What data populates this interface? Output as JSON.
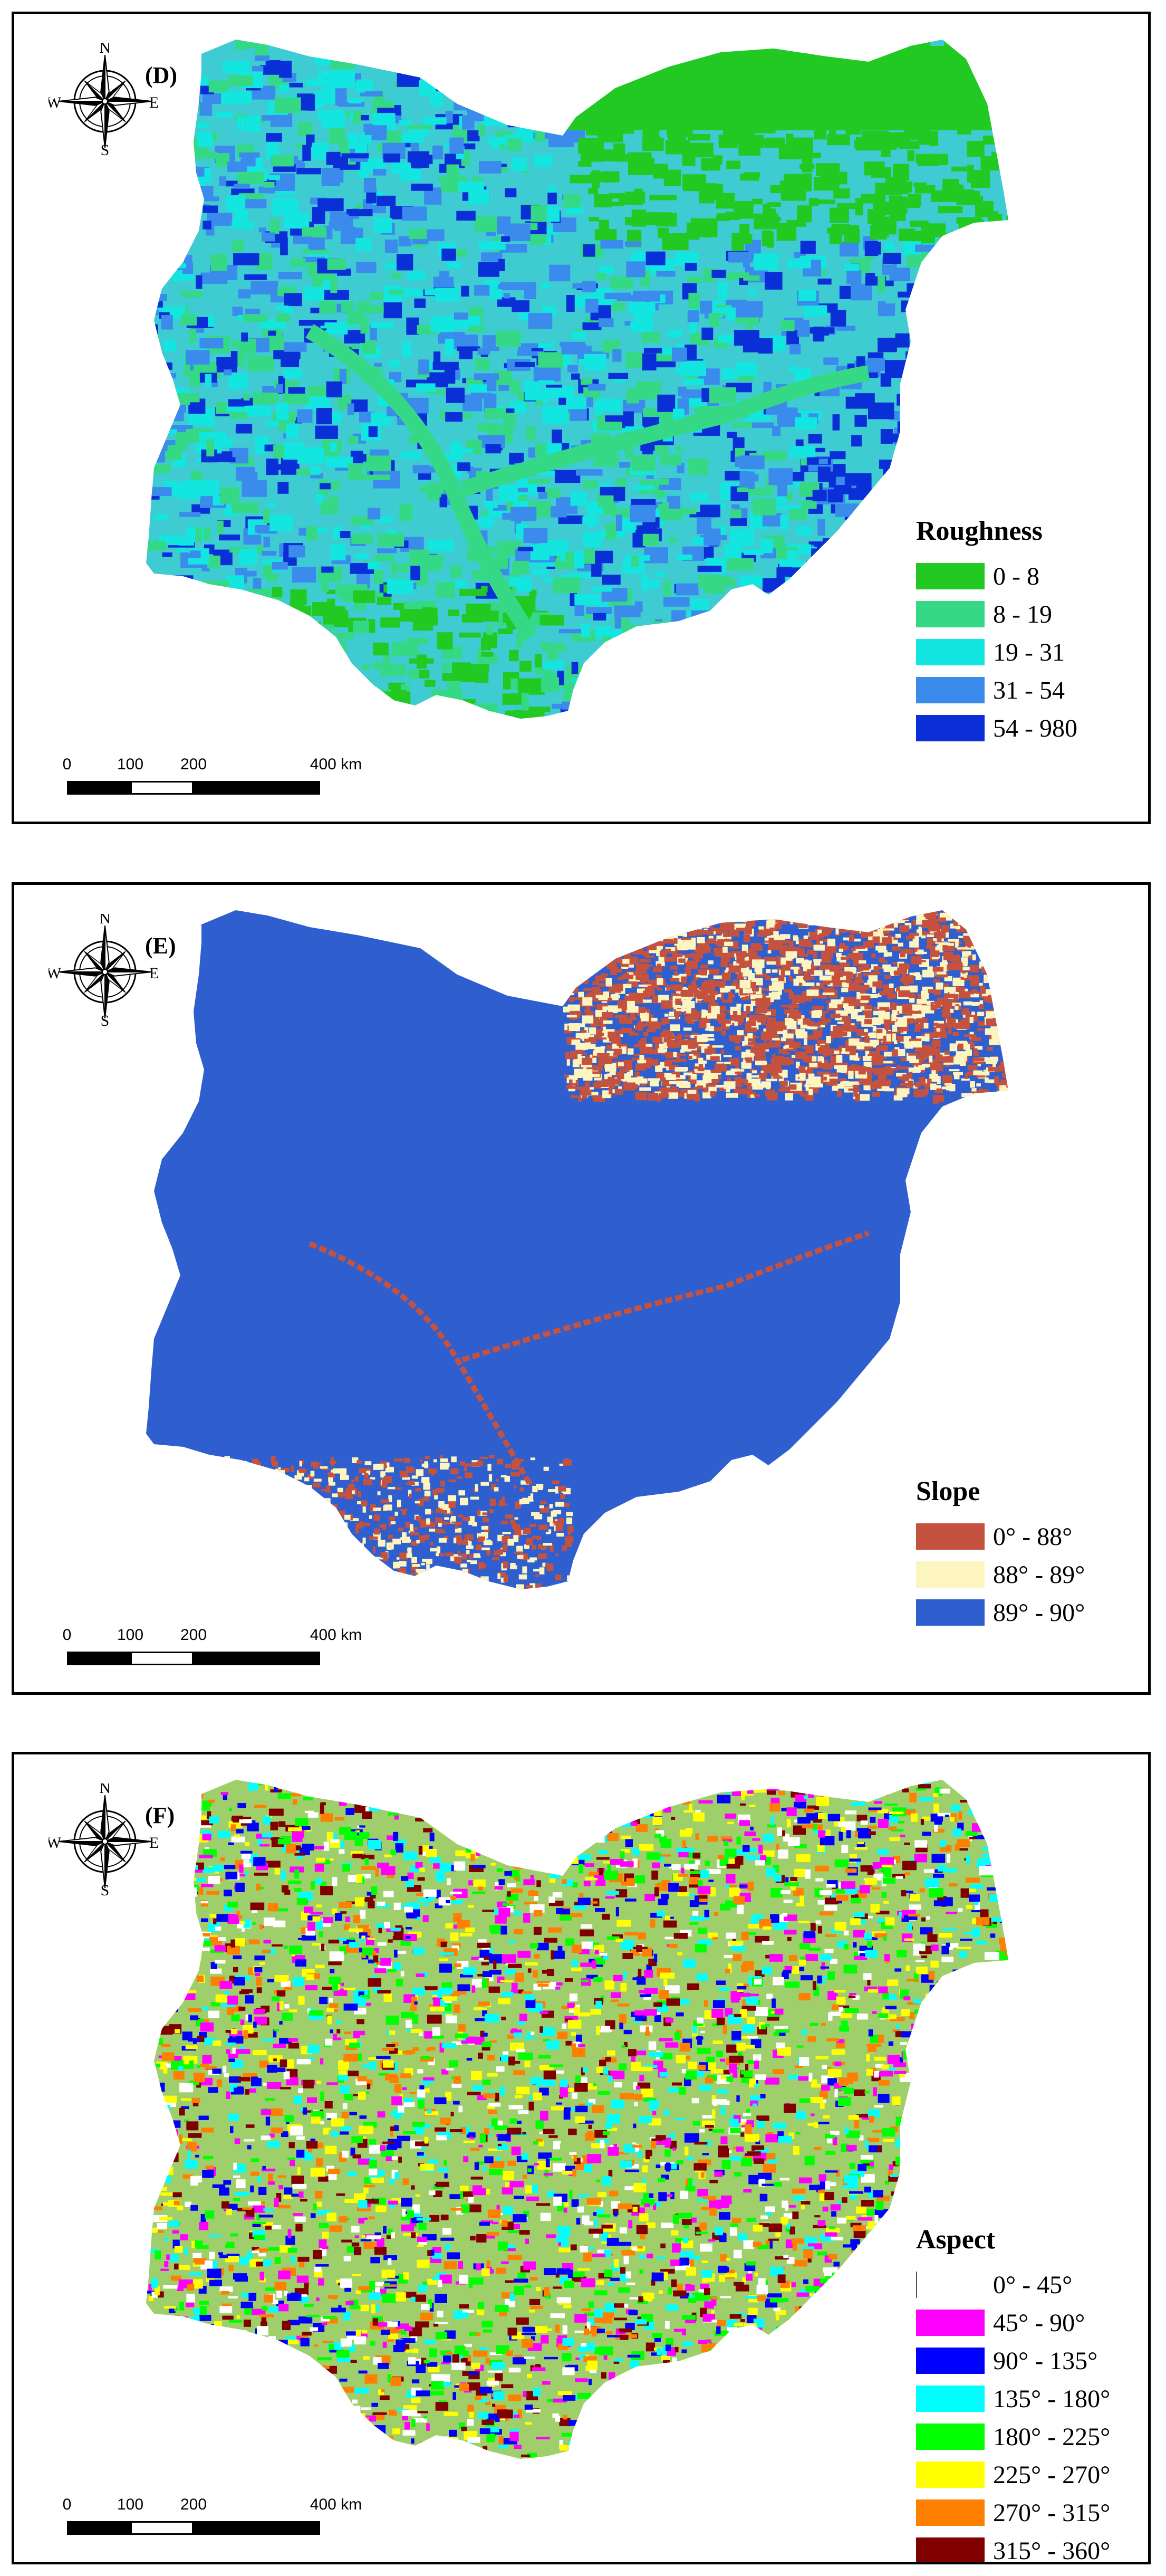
{
  "compass": {
    "north": "N",
    "south": "S",
    "east": "E",
    "west": "W"
  },
  "scalebar": {
    "ticks": [
      "0",
      "100",
      "200",
      "400 km"
    ]
  },
  "panels": [
    {
      "label": "(D)",
      "legend": {
        "title": "Roughness",
        "items": [
          {
            "label": "0 - 8",
            "color": "#22c922"
          },
          {
            "label": "8 - 19",
            "color": "#35d985"
          },
          {
            "label": "19 - 31",
            "color": "#13e6e0"
          },
          {
            "label": "31 - 54",
            "color": "#3a8bec"
          },
          {
            "label": "54 - 980",
            "color": "#0b2fd6"
          }
        ]
      },
      "base_color": "#3fcbd2"
    },
    {
      "label": "(E)",
      "legend": {
        "title": "Slope",
        "items": [
          {
            "label": "0° - 88°",
            "color": "#c5523e"
          },
          {
            "label": "88° - 89°",
            "color": "#fdf5bf"
          },
          {
            "label": "89° - 90°",
            "color": "#2f5fcf"
          }
        ]
      },
      "base_color": "#2f5fcf"
    },
    {
      "label": "(F)",
      "legend": {
        "title": "Aspect",
        "items": [
          {
            "label": "0° - 45°",
            "color": "#ffffff"
          },
          {
            "label": "45° - 90°",
            "color": "#ff00ff"
          },
          {
            "label": "90° - 135°",
            "color": "#0000ff"
          },
          {
            "label": "135° - 180°",
            "color": "#00ffff"
          },
          {
            "label": "180° - 225°",
            "color": "#00ff00"
          },
          {
            "label": "225° - 270°",
            "color": "#ffff00"
          },
          {
            "label": "270° - 315°",
            "color": "#ff8000"
          },
          {
            "label": "315° - 360°",
            "color": "#800000"
          }
        ]
      },
      "base_color": "#9fcf6a"
    }
  ]
}
